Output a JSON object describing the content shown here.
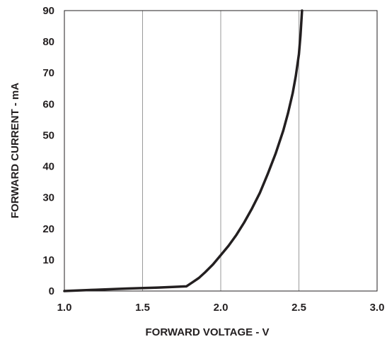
{
  "chart_data": {
    "type": "line",
    "title": "",
    "xlabel": "FORWARD VOLTAGE - V",
    "ylabel": "FORWARD CURRENT - mA",
    "xlim": [
      1.0,
      3.0
    ],
    "ylim": [
      0,
      90
    ],
    "x_ticks": [
      "1.0",
      "1.5",
      "2.0",
      "2.5",
      "3.0"
    ],
    "y_ticks": [
      "0",
      "10",
      "20",
      "30",
      "40",
      "50",
      "60",
      "70",
      "80",
      "90"
    ],
    "grid": "vertical",
    "series": [
      {
        "color": "#231f20",
        "x": [
          1.0,
          1.2,
          1.4,
          1.6,
          1.78,
          1.82,
          1.86,
          1.9,
          1.95,
          2.0,
          2.05,
          2.1,
          2.15,
          2.2,
          2.25,
          2.3,
          2.35,
          2.4,
          2.43,
          2.46,
          2.48,
          2.5,
          2.51,
          2.52
        ],
        "y": [
          0,
          0.4,
          0.8,
          1.1,
          1.5,
          2.8,
          4.2,
          6.0,
          8.5,
          11.5,
          14.5,
          18.0,
          22.0,
          26.5,
          31.5,
          37.5,
          44.0,
          51.5,
          57.0,
          63.5,
          69.0,
          76.0,
          82.0,
          90.0
        ]
      }
    ]
  }
}
